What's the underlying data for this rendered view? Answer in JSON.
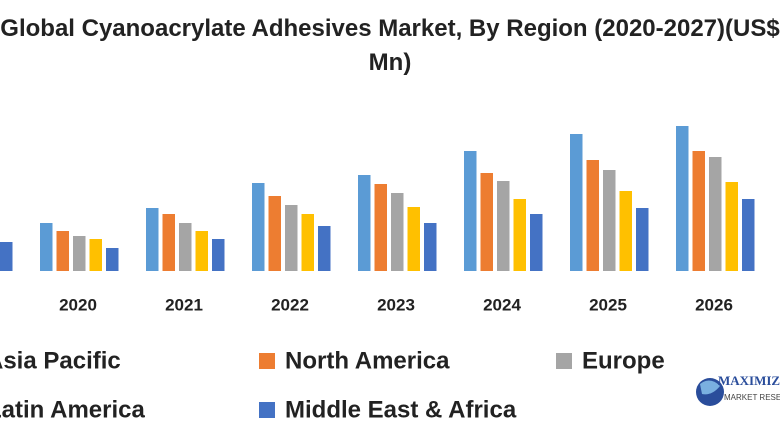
{
  "chart_data": {
    "type": "bar",
    "title": "Global Cyanoacrylate Adhesives Market, By Region (2020-2027)(US$ Mn)",
    "categories": [
      null,
      "2020",
      "2021",
      "2022",
      "2023",
      "2024",
      "2025",
      "2026"
    ],
    "series": [
      {
        "name": "Asia Pacific",
        "color": "#5b9bd5",
        "values": [
          null,
          48,
          63,
          88,
          96,
          120,
          137,
          145
        ]
      },
      {
        "name": "North America",
        "color": "#ed7d31",
        "values": [
          null,
          40,
          57,
          75,
          87,
          98,
          111,
          120
        ]
      },
      {
        "name": "Europe",
        "color": "#a5a5a5",
        "values": [
          null,
          35,
          48,
          66,
          78,
          90,
          101,
          114
        ]
      },
      {
        "name": "Latin America",
        "color": "#ffc000",
        "values": [
          null,
          32,
          40,
          57,
          64,
          72,
          80,
          89
        ]
      },
      {
        "name": "Middle East & Africa",
        "color": "#4472c4",
        "values": [
          29,
          23,
          32,
          45,
          48,
          57,
          63,
          72
        ]
      }
    ],
    "ylim": [
      0,
      145
    ],
    "logo": {
      "name": "MAXIMIZE",
      "tagline": "MARKET RESEARCH"
    }
  }
}
